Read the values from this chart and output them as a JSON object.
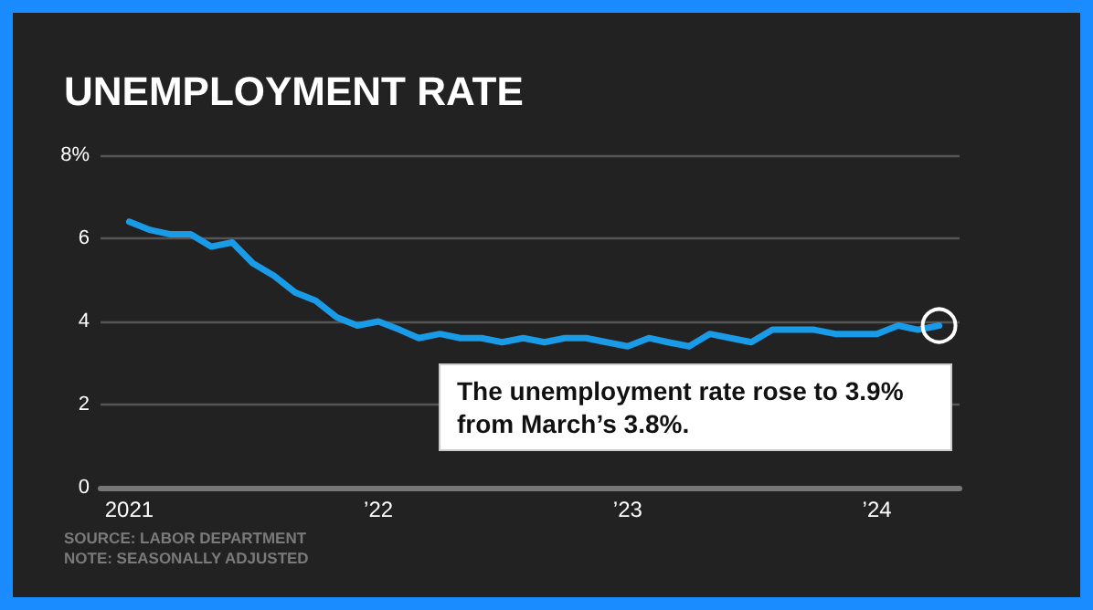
{
  "chart_data": {
    "type": "line",
    "title": "UNEMPLOYMENT RATE",
    "x": [
      "2021-01",
      "2021-02",
      "2021-03",
      "2021-04",
      "2021-05",
      "2021-06",
      "2021-07",
      "2021-08",
      "2021-09",
      "2021-10",
      "2021-11",
      "2021-12",
      "2022-01",
      "2022-02",
      "2022-03",
      "2022-04",
      "2022-05",
      "2022-06",
      "2022-07",
      "2022-08",
      "2022-09",
      "2022-10",
      "2022-11",
      "2022-12",
      "2023-01",
      "2023-02",
      "2023-03",
      "2023-04",
      "2023-05",
      "2023-06",
      "2023-07",
      "2023-08",
      "2023-09",
      "2023-10",
      "2023-11",
      "2023-12",
      "2024-01",
      "2024-02",
      "2024-03",
      "2024-04"
    ],
    "series": [
      {
        "color": "#1a9be8",
        "values": [
          6.4,
          6.2,
          6.1,
          6.1,
          5.8,
          5.9,
          5.4,
          5.1,
          4.7,
          4.5,
          4.1,
          3.9,
          4.0,
          3.8,
          3.6,
          3.7,
          3.6,
          3.6,
          3.5,
          3.6,
          3.5,
          3.6,
          3.6,
          3.5,
          3.4,
          3.6,
          3.5,
          3.4,
          3.7,
          3.6,
          3.5,
          3.8,
          3.8,
          3.8,
          3.7,
          3.7,
          3.7,
          3.9,
          3.8,
          3.9
        ]
      }
    ],
    "xlim": [
      "2020-11-20",
      "2024-05"
    ],
    "xticks": [
      {
        "value": "2021-01",
        "label": "2021"
      },
      {
        "value": "2022-01",
        "label": "’22"
      },
      {
        "value": "2023-01",
        "label": "’23"
      },
      {
        "value": "2024-01",
        "label": "’24"
      }
    ],
    "ylim": [
      0,
      8
    ],
    "yticks": [
      0,
      2,
      4,
      6,
      {
        "value": 8,
        "label": "8%"
      }
    ],
    "grid": "y",
    "marker": "none",
    "line_style": "solid",
    "annotations": [
      {
        "text": "The unemployment rate rose to 3.9% from March’s 3.8%.",
        "x": "2024-04",
        "y": 3.9
      },
      "SOURCE: LABOR DEPARTMENT",
      "NOTE: SEASONALLY ADJUSTED"
    ]
  }
}
